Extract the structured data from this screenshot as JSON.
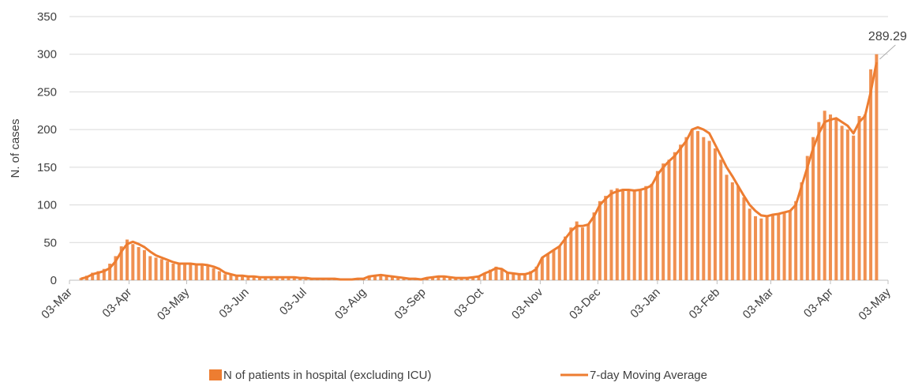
{
  "chart_data": {
    "type": "bar_line",
    "y_label": "N. of cases",
    "annotation": "289.29",
    "xlim": [
      0,
      426
    ],
    "xticks": [
      {
        "value": 0,
        "label": "03-Mar"
      },
      {
        "value": 31,
        "label": "03-Apr"
      },
      {
        "value": 61,
        "label": "03-May"
      },
      {
        "value": 92,
        "label": "03-Jun"
      },
      {
        "value": 122,
        "label": "03-Jul"
      },
      {
        "value": 153,
        "label": "03-Aug"
      },
      {
        "value": 184,
        "label": "03-Sep"
      },
      {
        "value": 214,
        "label": "03-Oct"
      },
      {
        "value": 245,
        "label": "03-Nov"
      },
      {
        "value": 275,
        "label": "03-Dec"
      },
      {
        "value": 306,
        "label": "03-Jan"
      },
      {
        "value": 337,
        "label": "03-Feb"
      },
      {
        "value": 365,
        "label": "03-Mar"
      },
      {
        "value": 396,
        "label": "03-Apr"
      },
      {
        "value": 426,
        "label": "03-May"
      }
    ],
    "ylim": [
      0,
      350
    ],
    "yticks": [
      0,
      50,
      100,
      150,
      200,
      250,
      300,
      350
    ],
    "grid": true,
    "x": [
      6,
      9,
      12,
      15,
      18,
      21,
      24,
      27,
      30,
      33,
      36,
      39,
      42,
      45,
      48,
      51,
      54,
      57,
      60,
      63,
      66,
      69,
      72,
      75,
      78,
      81,
      84,
      87,
      90,
      93,
      96,
      99,
      102,
      105,
      108,
      111,
      114,
      117,
      120,
      123,
      126,
      129,
      132,
      135,
      138,
      141,
      144,
      147,
      150,
      153,
      156,
      159,
      162,
      165,
      168,
      171,
      174,
      177,
      180,
      183,
      186,
      189,
      192,
      195,
      198,
      201,
      204,
      207,
      210,
      213,
      216,
      219,
      222,
      225,
      228,
      231,
      234,
      237,
      240,
      243,
      246,
      249,
      252,
      255,
      258,
      261,
      264,
      267,
      270,
      273,
      276,
      279,
      282,
      285,
      288,
      291,
      294,
      297,
      300,
      303,
      306,
      309,
      312,
      315,
      318,
      321,
      324,
      327,
      330,
      333,
      336,
      339,
      342,
      345,
      348,
      351,
      354,
      357,
      360,
      363,
      366,
      369,
      372,
      375,
      378,
      381,
      384,
      387,
      390,
      393,
      396,
      399,
      402,
      405,
      408,
      411,
      414,
      417,
      420
    ],
    "series": [
      {
        "name": "N of patients in hospital (excluding ICU)",
        "kind": "bar",
        "color": "#ed7d31",
        "values": [
          3,
          6,
          10,
          12,
          15,
          22,
          32,
          45,
          54,
          48,
          44,
          40,
          32,
          30,
          28,
          25,
          22,
          21,
          23,
          22,
          22,
          20,
          19,
          16,
          12,
          8,
          7,
          6,
          5,
          5,
          5,
          4,
          4,
          4,
          4,
          4,
          4,
          3,
          3,
          3,
          2,
          2,
          2,
          2,
          2,
          1,
          1,
          1,
          2,
          2,
          6,
          7,
          8,
          6,
          5,
          4,
          3,
          2,
          2,
          1,
          3,
          5,
          6,
          5,
          4,
          3,
          3,
          3,
          4,
          6,
          10,
          14,
          18,
          14,
          10,
          8,
          7,
          8,
          12,
          18,
          30,
          35,
          40,
          45,
          58,
          70,
          78,
          70,
          75,
          90,
          105,
          112,
          120,
          122,
          120,
          120,
          118,
          120,
          125,
          128,
          145,
          155,
          160,
          170,
          180,
          190,
          200,
          198,
          190,
          185,
          175,
          160,
          140,
          130,
          125,
          110,
          95,
          85,
          82,
          85,
          86,
          88,
          90,
          92,
          105,
          130,
          165,
          190,
          210,
          225,
          220,
          215,
          205,
          200,
          192,
          218,
          220,
          280,
          300
        ]
      },
      {
        "name": "7-day Moving Average",
        "kind": "line",
        "color": "#ed7d31",
        "values": [
          2,
          4,
          8,
          10,
          12,
          16,
          25,
          38,
          48,
          51,
          48,
          44,
          38,
          33,
          30,
          27,
          24,
          22,
          22,
          22,
          21,
          21,
          20,
          18,
          15,
          10,
          8,
          6,
          6,
          5,
          5,
          4,
          4,
          4,
          4,
          4,
          4,
          4,
          3,
          3,
          2,
          2,
          2,
          2,
          2,
          1,
          1,
          1,
          2,
          2,
          5,
          6,
          7,
          6,
          5,
          4,
          3,
          2,
          2,
          1,
          3,
          4,
          5,
          5,
          4,
          3,
          3,
          3,
          4,
          5,
          9,
          12,
          16,
          15,
          10,
          9,
          8,
          8,
          10,
          15,
          30,
          35,
          40,
          45,
          55,
          65,
          72,
          72,
          74,
          85,
          100,
          108,
          115,
          118,
          120,
          120,
          119,
          120,
          122,
          126,
          140,
          150,
          158,
          165,
          175,
          185,
          200,
          203,
          200,
          195,
          180,
          165,
          150,
          138,
          125,
          112,
          100,
          92,
          86,
          85,
          87,
          88,
          90,
          92,
          100,
          125,
          150,
          175,
          195,
          210,
          213,
          215,
          210,
          205,
          195,
          210,
          218,
          250,
          289.29
        ]
      }
    ]
  }
}
